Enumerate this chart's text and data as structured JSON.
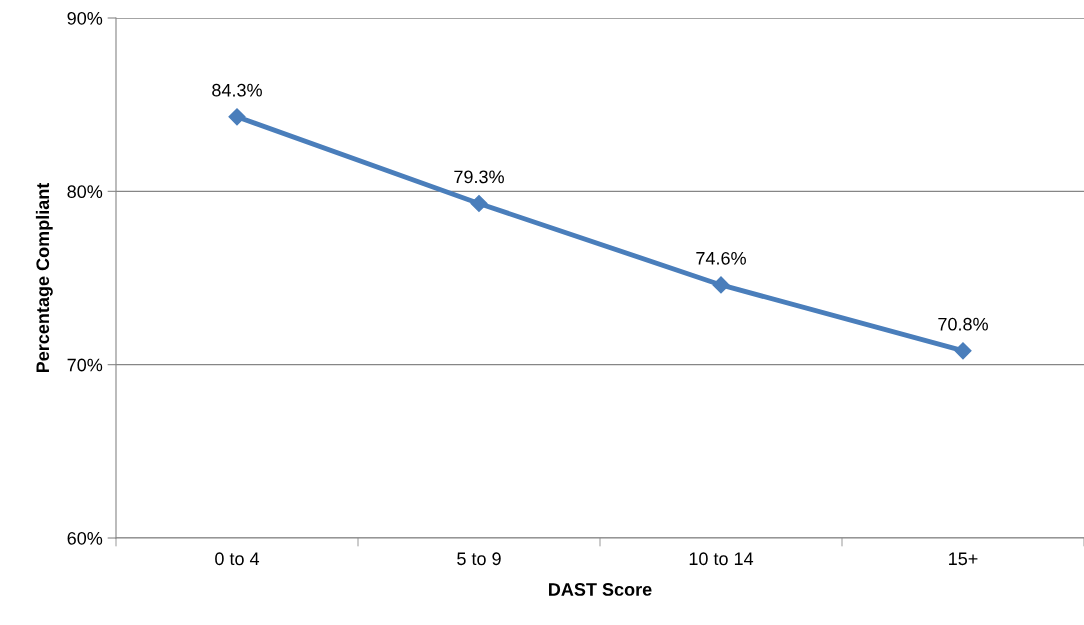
{
  "chart_data": {
    "type": "line",
    "xlabel": "DAST Score",
    "ylabel": "Percentage Compliant",
    "categories": [
      "0 to 4",
      "5 to 9",
      "10 to 14",
      "15+"
    ],
    "series": [
      {
        "color": "#4a7ebb",
        "values": [
          84.3,
          79.3,
          74.6,
          70.8
        ],
        "value_labels": [
          "84.3%",
          "79.3%",
          "74.6%",
          "70.8%"
        ]
      }
    ],
    "ylim": [
      60,
      90
    ],
    "yticks": [
      {
        "value": 60,
        "label": "60%"
      },
      {
        "value": 70,
        "label": "70%"
      },
      {
        "value": 80,
        "label": "80%"
      },
      {
        "value": 90,
        "label": "90%"
      }
    ],
    "grid": "y",
    "marker": "diamond",
    "line_style": "solid",
    "legend": false
  }
}
